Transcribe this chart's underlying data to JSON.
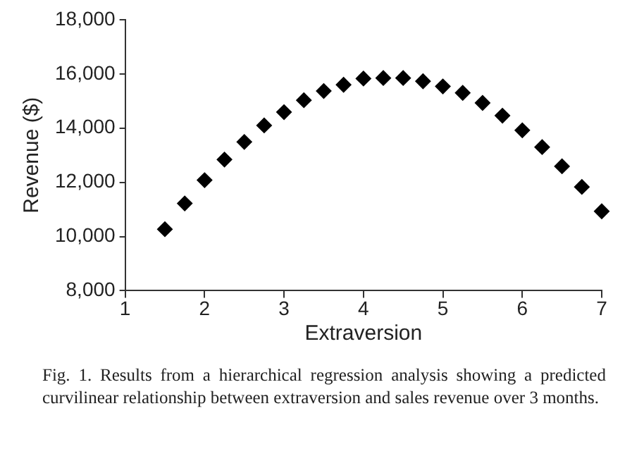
{
  "chart_data": {
    "type": "scatter",
    "xlabel": "Extraversion",
    "ylabel": "Revenue ($)",
    "x": [
      1.5,
      1.75,
      2,
      2.25,
      2.5,
      2.75,
      3,
      3.25,
      3.5,
      3.75,
      4,
      4.25,
      4.5,
      4.75,
      5,
      5.25,
      5.5,
      5.75,
      6,
      6.25,
      6.5,
      6.75,
      7
    ],
    "values": [
      10270,
      11220,
      12080,
      12840,
      13490,
      14100,
      14590,
      15030,
      15370,
      15600,
      15830,
      15850,
      15850,
      15730,
      15540,
      15300,
      14930,
      14460,
      13920,
      13300,
      12590,
      11830,
      10930
    ],
    "color": "#000000",
    "marker": "diamond",
    "xlim": [
      1,
      7
    ],
    "xticks": [
      1,
      2,
      3,
      4,
      5,
      6,
      7
    ],
    "ylim": [
      8000,
      18000
    ],
    "yticks": [
      {
        "value": 8000,
        "label": "8,000"
      },
      {
        "value": 10000,
        "label": "10,000"
      },
      {
        "value": 12000,
        "label": "12,000"
      },
      {
        "value": 14000,
        "label": "14,000"
      },
      {
        "value": 16000,
        "label": "16,000"
      },
      {
        "value": 18000,
        "label": "18,000"
      }
    ],
    "grid": false,
    "legend": false,
    "annotations": [
      "Fig. 1. Results from a hierarchical regression analysis showing a predicted curvilinear relationship between extraversion and sales revenue over 3 months."
    ]
  }
}
